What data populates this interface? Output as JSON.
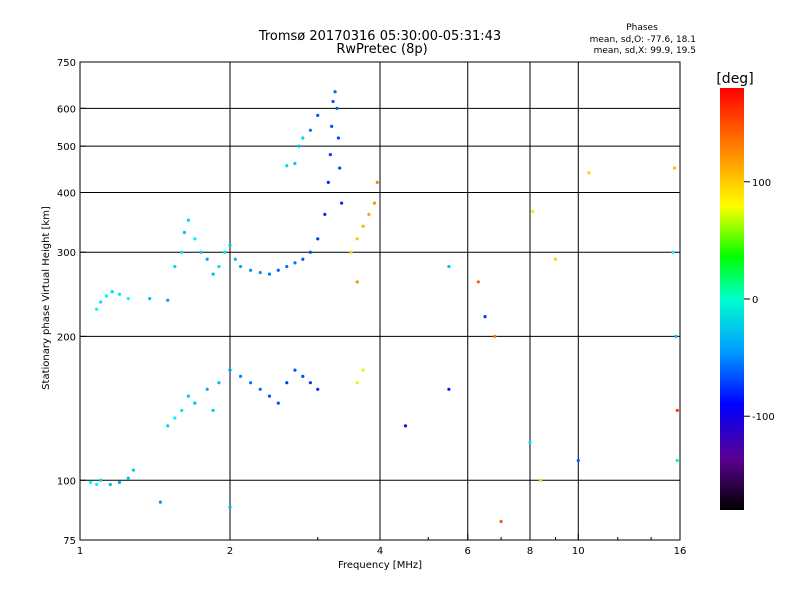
{
  "chart_data": {
    "type": "scatter",
    "title": "Tromsø 20170316 05:30:00-05:31:43",
    "subtitle": "RwPretec (8p)",
    "info": {
      "heading": "Phases",
      "line1": "mean, sd,O: -77.6, 18.1",
      "line2": "mean, sd,X:  99.9, 19.5"
    },
    "xlabel": "Frequency [MHz]",
    "ylabel": "Stationary phase Virtual Height [km]",
    "x_scale": "log",
    "y_scale": "log",
    "xlim": [
      1,
      16
    ],
    "ylim": [
      75,
      750
    ],
    "x_ticks": [
      {
        "value": 1,
        "label": "1"
      },
      {
        "value": 2,
        "label": "2"
      },
      {
        "value": 4,
        "label": "4"
      },
      {
        "value": 6,
        "label": "6"
      },
      {
        "value": 8,
        "label": "8"
      },
      {
        "value": 10,
        "label": "10"
      },
      {
        "value": 16,
        "label": "16"
      }
    ],
    "x_minor_ticks": [
      3,
      5,
      7,
      9,
      12,
      14
    ],
    "y_ticks": [
      {
        "value": 75,
        "label": "75"
      },
      {
        "value": 100,
        "label": "100"
      },
      {
        "value": 200,
        "label": "200"
      },
      {
        "value": 300,
        "label": "300"
      },
      {
        "value": 400,
        "label": "400"
      },
      {
        "value": 500,
        "label": "500"
      },
      {
        "value": 600,
        "label": "600"
      },
      {
        "value": 750,
        "label": "750"
      }
    ],
    "x_gridlines": [
      2,
      4,
      6,
      8,
      10
    ],
    "y_gridlines": [
      100,
      200,
      300,
      400,
      500,
      600
    ],
    "grid": true,
    "colorbar": {
      "label": "[deg]",
      "range": [
        -180,
        180
      ],
      "ticks": [
        {
          "value": 100,
          "label": "100"
        },
        {
          "value": 0,
          "label": "0"
        },
        {
          "value": -100,
          "label": "-100"
        }
      ]
    },
    "points": [
      [
        1.05,
        99,
        -60
      ],
      [
        1.08,
        98,
        -60
      ],
      [
        1.1,
        100,
        -70
      ],
      [
        1.15,
        98,
        -80
      ],
      [
        1.2,
        99,
        -85
      ],
      [
        1.25,
        101,
        -80
      ],
      [
        1.28,
        105,
        -75
      ],
      [
        1.08,
        228,
        -60
      ],
      [
        1.1,
        236,
        -65
      ],
      [
        1.13,
        243,
        -60
      ],
      [
        1.16,
        248,
        -70
      ],
      [
        1.2,
        245,
        -65
      ],
      [
        1.25,
        240,
        -60
      ],
      [
        1.38,
        240,
        -80
      ],
      [
        1.5,
        238,
        -85
      ],
      [
        1.55,
        280,
        -70
      ],
      [
        1.6,
        300,
        -65
      ],
      [
        1.62,
        330,
        -80
      ],
      [
        1.65,
        350,
        -70
      ],
      [
        1.7,
        320,
        -60
      ],
      [
        1.75,
        300,
        -75
      ],
      [
        1.8,
        290,
        -85
      ],
      [
        1.85,
        270,
        -80
      ],
      [
        1.9,
        280,
        -70
      ],
      [
        1.95,
        300,
        -65
      ],
      [
        2.0,
        310,
        -75
      ],
      [
        2.05,
        290,
        -80
      ],
      [
        2.1,
        280,
        -85
      ],
      [
        2.2,
        275,
        -90
      ],
      [
        2.3,
        272,
        -95
      ],
      [
        2.4,
        270,
        -100
      ],
      [
        2.5,
        275,
        -105
      ],
      [
        2.6,
        280,
        -105
      ],
      [
        2.7,
        285,
        -100
      ],
      [
        2.8,
        290,
        -110
      ],
      [
        2.9,
        300,
        -115
      ],
      [
        3.0,
        320,
        -120
      ],
      [
        3.1,
        360,
        -125
      ],
      [
        3.15,
        420,
        -125
      ],
      [
        3.18,
        480,
        -120
      ],
      [
        3.2,
        550,
        -115
      ],
      [
        3.22,
        620,
        -110
      ],
      [
        3.25,
        650,
        -105
      ],
      [
        3.28,
        600,
        -110
      ],
      [
        3.3,
        520,
        -115
      ],
      [
        3.32,
        450,
        -120
      ],
      [
        3.35,
        380,
        -125
      ],
      [
        2.6,
        455,
        -70
      ],
      [
        2.7,
        460,
        -75
      ],
      [
        2.75,
        500,
        -80
      ],
      [
        2.8,
        520,
        -70
      ],
      [
        2.9,
        540,
        -100
      ],
      [
        3.0,
        580,
        -110
      ],
      [
        3.5,
        300,
        110
      ],
      [
        3.6,
        320,
        115
      ],
      [
        3.7,
        340,
        120
      ],
      [
        3.8,
        360,
        125
      ],
      [
        3.9,
        380,
        130
      ],
      [
        3.95,
        420,
        135
      ],
      [
        3.6,
        260,
        130
      ],
      [
        1.5,
        130,
        -70
      ],
      [
        1.55,
        135,
        -60
      ],
      [
        1.6,
        140,
        -65
      ],
      [
        1.65,
        150,
        -75
      ],
      [
        1.7,
        145,
        -80
      ],
      [
        1.8,
        155,
        -85
      ],
      [
        1.85,
        140,
        -75
      ],
      [
        1.9,
        160,
        -80
      ],
      [
        2.0,
        170,
        -90
      ],
      [
        2.1,
        165,
        -95
      ],
      [
        2.2,
        160,
        -100
      ],
      [
        2.3,
        155,
        -105
      ],
      [
        2.4,
        150,
        -110
      ],
      [
        2.5,
        145,
        -115
      ],
      [
        2.6,
        160,
        -120
      ],
      [
        2.7,
        170,
        -110
      ],
      [
        2.8,
        165,
        -115
      ],
      [
        2.9,
        160,
        -120
      ],
      [
        3.0,
        155,
        -125
      ],
      [
        3.6,
        160,
        100
      ],
      [
        3.7,
        170,
        95
      ],
      [
        1.45,
        90,
        -90
      ],
      [
        2.0,
        88,
        -80
      ],
      [
        4.5,
        130,
        -150
      ],
      [
        5.5,
        155,
        -130
      ],
      [
        5.5,
        280,
        -80
      ],
      [
        6.3,
        260,
        150
      ],
      [
        6.5,
        220,
        -120
      ],
      [
        6.8,
        200,
        140
      ],
      [
        7.0,
        82,
        150
      ],
      [
        8.0,
        120,
        -70
      ],
      [
        8.1,
        365,
        95
      ],
      [
        8.4,
        100,
        110
      ],
      [
        9.0,
        290,
        110
      ],
      [
        10.0,
        110,
        -110
      ],
      [
        10.5,
        440,
        110
      ],
      [
        15.5,
        300,
        -60
      ],
      [
        15.6,
        450,
        120
      ],
      [
        15.7,
        200,
        -80
      ],
      [
        15.8,
        110,
        -50
      ],
      [
        15.8,
        140,
        160
      ]
    ]
  }
}
